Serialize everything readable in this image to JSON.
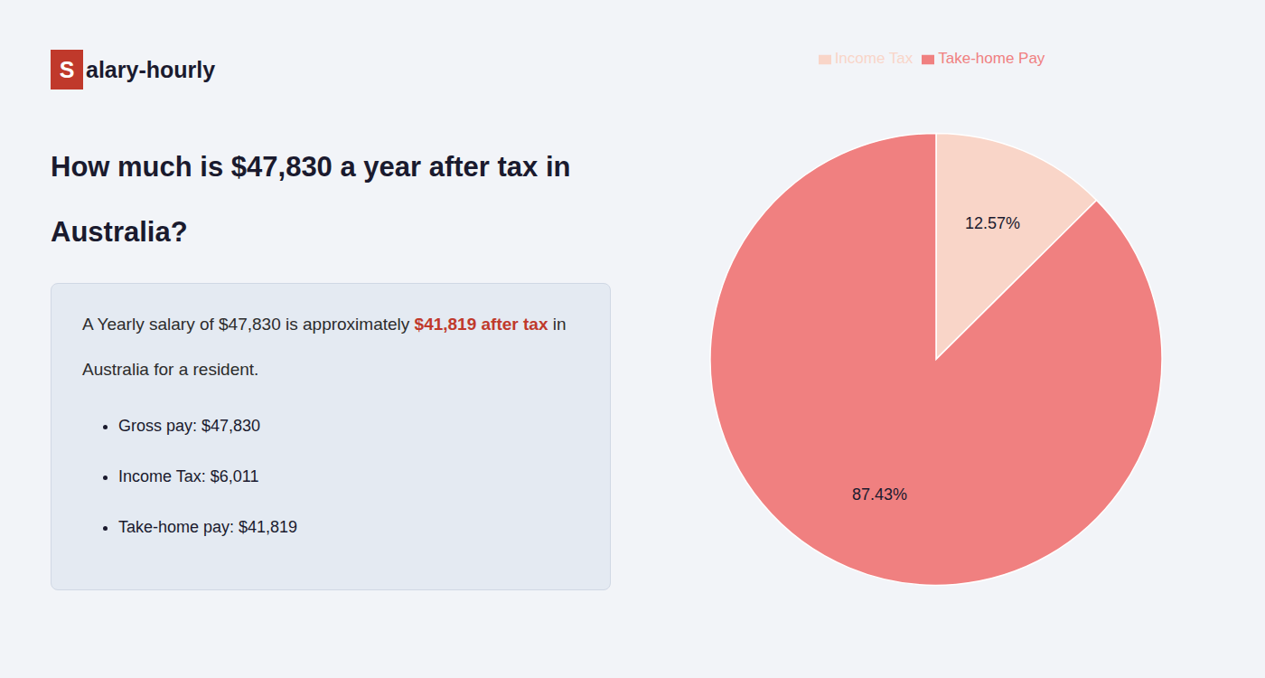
{
  "chart_data": {
    "type": "pie",
    "title": "How much is $47,830 a year after tax in\nAustralia?",
    "annotations": [
      [
        "S",
        "alary-hourly"
      ],
      [
        "A Yearly salary of $47,830 is approximately ",
        "$41,819 after tax",
        " in"
      ],
      [
        "Australia for a resident."
      ],
      [
        "Gross pay: $47,830"
      ],
      [
        "Income Tax: $6,011"
      ],
      [
        "Take-home pay: $41,819"
      ]
    ],
    "categories": [
      "Income Tax",
      "Take-home Pay"
    ],
    "values": [
      12.57,
      87.43
    ],
    "value_labels": [
      "12.57%",
      "87.43%"
    ],
    "colors": [
      "#f9d5c8",
      "#f08080"
    ],
    "data_labels": true,
    "legend": "top"
  }
}
